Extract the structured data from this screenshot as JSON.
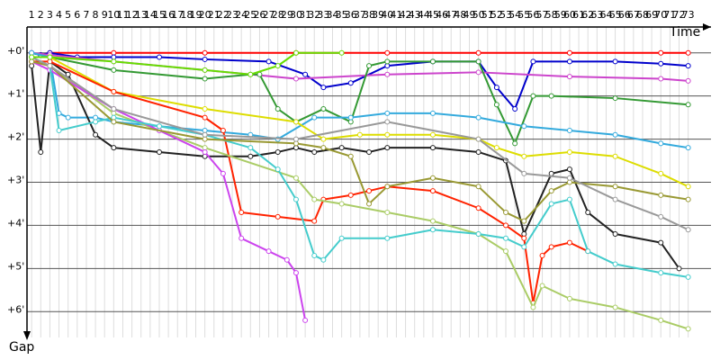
{
  "chart_data": {
    "type": "line",
    "x_label": "Time",
    "y_label": "Gap",
    "xlim": [
      0,
      75.5
    ],
    "ylim": [
      -0.6,
      6.6
    ],
    "inverted_y": true,
    "grid": true,
    "xticks": [
      1,
      2,
      3,
      4,
      5,
      6,
      7,
      8,
      9,
      10,
      11,
      12,
      13,
      14,
      15,
      16,
      17,
      18,
      19,
      20,
      21,
      22,
      23,
      24,
      25,
      26,
      27,
      28,
      29,
      30,
      31,
      32,
      33,
      34,
      35,
      36,
      37,
      38,
      39,
      40,
      41,
      42,
      43,
      44,
      45,
      46,
      47,
      48,
      49,
      50,
      51,
      52,
      53,
      54,
      55,
      56,
      57,
      58,
      59,
      60,
      61,
      62,
      63,
      64,
      65,
      66,
      67,
      68,
      69,
      70,
      71,
      72,
      73
    ],
    "yticks": [
      {
        "value": 0,
        "label": "+0'"
      },
      {
        "value": 1,
        "label": "+1'"
      },
      {
        "value": 2,
        "label": "+2'"
      },
      {
        "value": 3,
        "label": "+3'"
      },
      {
        "value": 4,
        "label": "+4'"
      },
      {
        "value": 5,
        "label": "+5'"
      },
      {
        "value": 6,
        "label": "+6'"
      }
    ],
    "series": [
      {
        "color": "#ff0000",
        "x": [
          1,
          2,
          3,
          10,
          20,
          30,
          40,
          50,
          60,
          70,
          73
        ],
        "values": [
          0,
          0.05,
          0,
          0,
          0,
          0,
          0,
          0,
          0,
          0,
          0
        ]
      },
      {
        "color": "#0000cc",
        "x": [
          1,
          2,
          3,
          6,
          10,
          15,
          20,
          27,
          31,
          33,
          36,
          40,
          45,
          50,
          52,
          54,
          56,
          60,
          65,
          70,
          73
        ],
        "values": [
          0,
          0.05,
          0,
          0.1,
          0.1,
          0.1,
          0.15,
          0.2,
          0.5,
          0.8,
          0.7,
          0.3,
          0.2,
          0.2,
          0.8,
          1.3,
          0.2,
          0.2,
          0.2,
          0.25,
          0.3
        ]
      },
      {
        "color": "#cc44cc",
        "x": [
          1,
          3,
          10,
          20,
          30,
          40,
          50,
          60,
          70,
          73
        ],
        "values": [
          0,
          0.05,
          0.2,
          0.4,
          0.6,
          0.5,
          0.45,
          0.55,
          0.6,
          0.65
        ]
      },
      {
        "color": "#339933",
        "x": [
          1,
          3,
          10,
          20,
          25,
          26,
          28,
          30,
          33,
          36,
          38,
          40,
          45,
          50,
          52,
          54,
          56,
          58,
          65,
          73
        ],
        "values": [
          0.1,
          0.1,
          0.4,
          0.6,
          0.5,
          0.5,
          1.3,
          1.6,
          1.3,
          1.6,
          0.3,
          0.2,
          0.2,
          0.2,
          1.2,
          2.1,
          1.0,
          1.0,
          1.05,
          1.2
        ]
      },
      {
        "color": "#33aadd",
        "x": [
          1,
          3,
          4,
          5,
          8,
          10,
          15,
          20,
          25,
          28,
          32,
          36,
          40,
          45,
          50,
          55,
          60,
          65,
          70,
          73
        ],
        "values": [
          0,
          0.1,
          1.4,
          1.5,
          1.5,
          1.6,
          1.7,
          1.8,
          1.9,
          2.0,
          1.5,
          1.5,
          1.4,
          1.4,
          1.5,
          1.7,
          1.8,
          1.9,
          2.1,
          2.2
        ]
      },
      {
        "color": "#222222",
        "x": [
          1,
          2,
          3,
          5,
          8,
          10,
          15,
          20,
          25,
          28,
          30,
          32,
          35,
          38,
          40,
          45,
          50,
          53,
          55,
          58,
          60,
          62,
          65,
          70,
          72
        ],
        "values": [
          0.3,
          2.3,
          0.2,
          0.5,
          1.9,
          2.2,
          2.3,
          2.4,
          2.4,
          2.3,
          2.2,
          2.3,
          2.2,
          2.3,
          2.2,
          2.2,
          2.3,
          2.5,
          4.2,
          2.8,
          2.7,
          3.7,
          4.2,
          4.4,
          5.0
        ]
      },
      {
        "color": "#dddd00",
        "x": [
          1,
          3,
          10,
          20,
          30,
          33,
          37,
          40,
          45,
          50,
          52,
          55,
          60,
          65,
          70,
          73
        ],
        "values": [
          0.1,
          0.1,
          0.9,
          1.3,
          1.6,
          2.0,
          1.9,
          1.9,
          1.9,
          2.0,
          2.2,
          2.4,
          2.3,
          2.4,
          2.8,
          3.1
        ]
      },
      {
        "color": "#ff2200",
        "x": [
          1,
          3,
          10,
          20,
          22,
          24,
          28,
          32,
          33,
          36,
          38,
          40,
          45,
          50,
          53,
          55,
          56,
          57,
          58,
          60,
          62
        ],
        "values": [
          0.2,
          0.2,
          0.9,
          1.5,
          1.8,
          3.7,
          3.8,
          3.9,
          3.4,
          3.3,
          3.2,
          3.1,
          3.2,
          3.6,
          4.0,
          4.3,
          5.8,
          4.7,
          4.5,
          4.4,
          4.6
        ]
      },
      {
        "color": "#aacc66",
        "x": [
          1,
          3,
          10,
          20,
          30,
          32,
          35,
          40,
          45,
          50,
          53,
          56,
          57,
          60,
          65,
          70,
          73
        ],
        "values": [
          0.2,
          0.3,
          1.4,
          2.2,
          2.9,
          3.4,
          3.5,
          3.7,
          3.9,
          4.2,
          4.6,
          5.9,
          5.4,
          5.7,
          5.9,
          6.2,
          6.4
        ]
      },
      {
        "color": "#cc44ee",
        "x": [
          1,
          3,
          10,
          15,
          20,
          22,
          24,
          27,
          29,
          30,
          31
        ],
        "values": [
          0.2,
          0.4,
          1.3,
          1.8,
          2.3,
          2.8,
          4.3,
          4.6,
          4.8,
          5.1,
          6.2
        ]
      },
      {
        "color": "#44cccc",
        "x": [
          1,
          3,
          4,
          8,
          10,
          15,
          20,
          25,
          28,
          30,
          32,
          33,
          35,
          40,
          45,
          50,
          53,
          55,
          58,
          60,
          62,
          65,
          70,
          73
        ],
        "values": [
          0.1,
          0.3,
          1.8,
          1.6,
          1.5,
          1.7,
          1.9,
          2.2,
          2.7,
          3.4,
          4.7,
          4.8,
          4.3,
          4.3,
          4.1,
          4.2,
          4.3,
          4.5,
          3.5,
          3.4,
          4.6,
          4.9,
          5.1,
          5.2
        ]
      },
      {
        "color": "#999933",
        "x": [
          1,
          3,
          10,
          20,
          30,
          33,
          36,
          38,
          40,
          45,
          50,
          53,
          55,
          58,
          60,
          65,
          70,
          73
        ],
        "values": [
          0.2,
          0.3,
          1.6,
          2.0,
          2.1,
          2.2,
          2.4,
          3.5,
          3.1,
          2.9,
          3.1,
          3.7,
          3.9,
          3.2,
          3.0,
          3.1,
          3.3,
          3.4
        ]
      },
      {
        "color": "#999999",
        "x": [
          1,
          3,
          10,
          20,
          30,
          40,
          50,
          55,
          60,
          65,
          70,
          73
        ],
        "values": [
          0.1,
          0.3,
          1.3,
          1.9,
          2.0,
          1.6,
          2.0,
          2.8,
          2.9,
          3.4,
          3.8,
          4.1
        ]
      },
      {
        "color": "#66dd00",
        "x": [
          1,
          3,
          10,
          20,
          25,
          28,
          30,
          35
        ],
        "values": [
          0.1,
          0.1,
          0.2,
          0.4,
          0.5,
          0.3,
          0,
          0
        ]
      }
    ]
  }
}
